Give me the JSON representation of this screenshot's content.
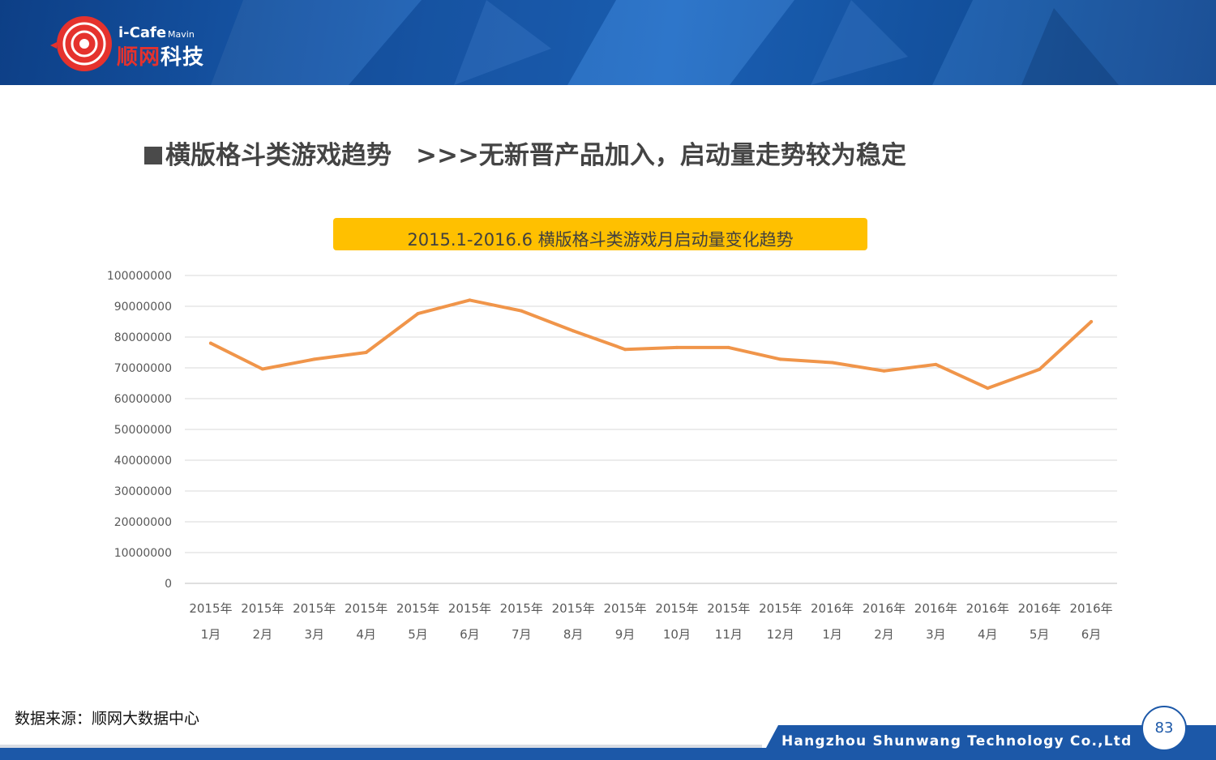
{
  "header": {
    "logo_latin": "i-Cafe",
    "logo_mavin": "Mavin",
    "logo_cn_red": "顺网",
    "logo_cn_white": "科技"
  },
  "page_title": {
    "main": "横版格斗类游戏趋势",
    "sub": ">>>无新晋产品加入，启动量走势较为稳定"
  },
  "chart_data": {
    "type": "line",
    "title": "2015.1-2016.6 横版格斗类游戏月启动量变化趋势",
    "categories": [
      [
        "2015年",
        "1月"
      ],
      [
        "2015年",
        "2月"
      ],
      [
        "2015年",
        "3月"
      ],
      [
        "2015年",
        "4月"
      ],
      [
        "2015年",
        "5月"
      ],
      [
        "2015年",
        "6月"
      ],
      [
        "2015年",
        "7月"
      ],
      [
        "2015年",
        "8月"
      ],
      [
        "2015年",
        "9月"
      ],
      [
        "2015年",
        "10月"
      ],
      [
        "2015年",
        "11月"
      ],
      [
        "2015年",
        "12月"
      ],
      [
        "2016年",
        "1月"
      ],
      [
        "2016年",
        "2月"
      ],
      [
        "2016年",
        "3月"
      ],
      [
        "2016年",
        "4月"
      ],
      [
        "2016年",
        "5月"
      ],
      [
        "2016年",
        "6月"
      ]
    ],
    "values": [
      78000000,
      69600000,
      72800000,
      75000000,
      87600000,
      92000000,
      88500000,
      82000000,
      76000000,
      76600000,
      76600000,
      72800000,
      71700000,
      69000000,
      71100000,
      63400000,
      69500000,
      85000000
    ],
    "yticks": [
      "0",
      "10000000",
      "20000000",
      "30000000",
      "40000000",
      "50000000",
      "60000000",
      "70000000",
      "80000000",
      "90000000",
      "100000000"
    ],
    "ylim": [
      0,
      100000000
    ],
    "xlabel": "",
    "ylabel": "",
    "grid": true,
    "line_color": "#f0954a"
  },
  "source": "数据来源：顺网大数据中心",
  "footer": {
    "company": "Hangzhou Shunwang Technology Co.,Ltd",
    "page_number": "83"
  }
}
